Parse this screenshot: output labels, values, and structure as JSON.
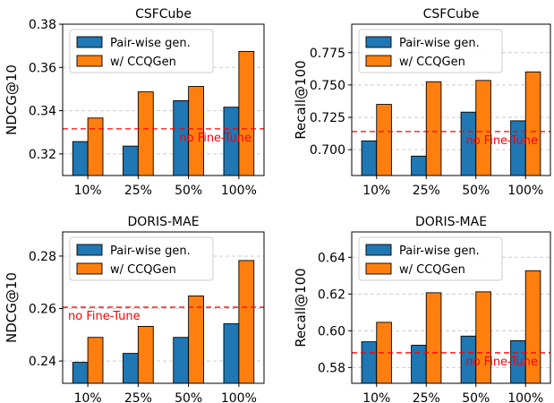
{
  "colors": {
    "pairwise": "#1f77b4",
    "ccqgen": "#ff7f0e",
    "reference": "#ff0000",
    "grid": "#cccccc"
  },
  "chart_data": [
    {
      "type": "bar",
      "title": "CSFCube",
      "ylabel": "NDCG@10",
      "categories": [
        "10%",
        "25%",
        "50%",
        "100%"
      ],
      "series": [
        {
          "name": "Pair-wise gen.",
          "values": [
            0.3257,
            0.3236,
            0.3446,
            0.3416
          ]
        },
        {
          "name": "w/ CCQGen",
          "values": [
            0.3366,
            0.3487,
            0.3512,
            0.3674
          ]
        }
      ],
      "reference_line": {
        "label": "no Fine-Tune",
        "value": 0.3316
      },
      "ylim": [
        0.31,
        0.38
      ],
      "yticks": [
        0.32,
        0.34,
        0.36,
        0.38
      ],
      "ytick_labels": [
        "0.32",
        "0.34",
        "0.36",
        "0.38"
      ],
      "grid": "horizontal dashed",
      "legend": "top-left"
    },
    {
      "type": "bar",
      "title": "CSFCube",
      "ylabel": "Recall@100",
      "categories": [
        "10%",
        "25%",
        "50%",
        "100%"
      ],
      "series": [
        {
          "name": "Pair-wise gen.",
          "values": [
            0.7068,
            0.695,
            0.729,
            0.7223
          ]
        },
        {
          "name": "w/ CCQGen",
          "values": [
            0.735,
            0.7525,
            0.7535,
            0.7601
          ]
        }
      ],
      "reference_line": {
        "label": "no Fine-Tune",
        "value": 0.714
      },
      "ylim": [
        0.68,
        0.797
      ],
      "yticks": [
        0.7,
        0.725,
        0.75,
        0.775
      ],
      "ytick_labels": [
        "0.700",
        "0.725",
        "0.750",
        "0.775"
      ],
      "grid": "horizontal dashed",
      "legend": "top-left"
    },
    {
      "type": "bar",
      "title": "DORIS-MAE",
      "ylabel": "NDCG@10",
      "categories": [
        "10%",
        "25%",
        "50%",
        "100%"
      ],
      "series": [
        {
          "name": "Pair-wise gen.",
          "values": [
            0.2395,
            0.2429,
            0.249,
            0.2542
          ]
        },
        {
          "name": "w/ CCQGen",
          "values": [
            0.249,
            0.2532,
            0.2648,
            0.2783
          ]
        }
      ],
      "reference_line": {
        "label": "no Fine-Tune",
        "value": 0.2605
      },
      "ylim": [
        0.2315,
        0.2892
      ],
      "yticks": [
        0.24,
        0.26,
        0.28
      ],
      "ytick_labels": [
        "0.24",
        "0.26",
        "0.28"
      ],
      "grid": "horizontal dashed",
      "legend": "top-left"
    },
    {
      "type": "bar",
      "title": "DORIS-MAE",
      "ylabel": "Recall@100",
      "categories": [
        "10%",
        "25%",
        "50%",
        "100%"
      ],
      "series": [
        {
          "name": "Pair-wise gen.",
          "values": [
            0.594,
            0.5921,
            0.5971,
            0.5946
          ]
        },
        {
          "name": "w/ CCQGen",
          "values": [
            0.6046,
            0.6207,
            0.6212,
            0.6327
          ]
        }
      ],
      "reference_line": {
        "label": "no Fine-Tune",
        "value": 0.588
      },
      "ylim": [
        0.5714,
        0.6538
      ],
      "yticks": [
        0.58,
        0.6,
        0.62,
        0.64
      ],
      "ytick_labels": [
        "0.58",
        "0.60",
        "0.62",
        "0.64"
      ],
      "grid": "horizontal dashed",
      "legend": "top-left"
    }
  ]
}
